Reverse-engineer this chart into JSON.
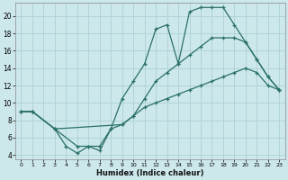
{
  "xlabel": "Humidex (Indice chaleur)",
  "bg_color": "#cde8eb",
  "grid_color": "#b0d4d8",
  "line_color": "#2a7068",
  "xlim": [
    -0.5,
    23.5
  ],
  "ylim": [
    3.5,
    21.5
  ],
  "xticks": [
    0,
    1,
    2,
    3,
    4,
    5,
    6,
    7,
    8,
    9,
    10,
    11,
    12,
    13,
    14,
    15,
    16,
    17,
    18,
    19,
    20,
    21,
    22,
    23
  ],
  "yticks": [
    4,
    6,
    8,
    10,
    12,
    14,
    16,
    18,
    20
  ],
  "curve_top_x": [
    0,
    1,
    3,
    4,
    5,
    6,
    7,
    8,
    9,
    10,
    11,
    12,
    13,
    14,
    15,
    16,
    17,
    18,
    19,
    20,
    21,
    22,
    23
  ],
  "curve_top_y": [
    9.0,
    9.0,
    7.0,
    5.0,
    4.2,
    5.0,
    4.5,
    7.0,
    10.5,
    12.5,
    14.5,
    18.5,
    19.0,
    14.5,
    20.5,
    21.0,
    21.0,
    21.0,
    19.0,
    17.0,
    15.0,
    13.0,
    11.5
  ],
  "curve_mid_x": [
    0,
    1,
    3,
    5,
    6,
    7,
    8,
    9,
    10,
    11,
    12,
    13,
    14,
    15,
    16,
    17,
    18,
    19,
    20,
    21,
    22,
    23
  ],
  "curve_mid_y": [
    9.0,
    9.0,
    7.0,
    5.0,
    5.0,
    5.0,
    7.0,
    7.5,
    8.5,
    10.5,
    12.5,
    13.5,
    14.5,
    15.5,
    16.5,
    17.5,
    17.5,
    17.5,
    17.0,
    15.0,
    13.0,
    11.5
  ],
  "curve_bot_x": [
    0,
    1,
    3,
    9,
    10,
    11,
    12,
    13,
    14,
    15,
    16,
    17,
    18,
    19,
    20,
    21,
    22,
    23
  ],
  "curve_bot_y": [
    9.0,
    9.0,
    7.0,
    7.5,
    8.5,
    9.5,
    10.0,
    10.5,
    11.0,
    11.5,
    12.0,
    12.5,
    13.0,
    13.5,
    14.0,
    13.5,
    12.0,
    11.5
  ]
}
